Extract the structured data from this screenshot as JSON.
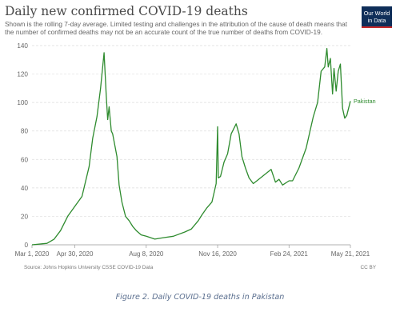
{
  "chart_data": {
    "type": "line",
    "title": "Daily new confirmed COVID-19 deaths",
    "subtitle": "Shown is the rolling 7-day average. Limited testing and challenges in the attribution of the cause of death means that the number of confirmed deaths may not be an accurate count of the true number of deaths from COVID-19.",
    "logo_text": "Our World in Data",
    "source": "Source: Johns Hopkins University CSSE COVID-19 Data",
    "license": "CC BY",
    "x_tick_labels": [
      "Mar 1, 2020",
      "Apr 30, 2020",
      "Aug 8, 2020",
      "Nov 16, 2020",
      "Feb 24, 2021",
      "May 21, 2021"
    ],
    "y_ticks": [
      0,
      20,
      40,
      60,
      80,
      100,
      120,
      140
    ],
    "ylim": [
      0,
      140
    ],
    "xlim": [
      "2020-03-01",
      "2021-05-21"
    ],
    "grid": true,
    "line_color": "#2e8b2e",
    "series": [
      {
        "name": "Pakistan",
        "x": [
          "2020-03-01",
          "2020-03-22",
          "2020-04-01",
          "2020-04-10",
          "2020-04-20",
          "2020-04-30",
          "2020-05-10",
          "2020-05-20",
          "2020-05-25",
          "2020-05-31",
          "2020-06-05",
          "2020-06-10",
          "2020-06-13",
          "2020-06-15",
          "2020-06-17",
          "2020-06-20",
          "2020-06-22",
          "2020-06-25",
          "2020-06-28",
          "2020-07-01",
          "2020-07-05",
          "2020-07-10",
          "2020-07-15",
          "2020-07-20",
          "2020-07-25",
          "2020-08-01",
          "2020-08-08",
          "2020-08-20",
          "2020-09-01",
          "2020-09-15",
          "2020-10-01",
          "2020-10-10",
          "2020-10-20",
          "2020-10-25",
          "2020-11-01",
          "2020-11-08",
          "2020-11-14",
          "2020-11-16",
          "2020-11-17",
          "2020-11-20",
          "2020-11-25",
          "2020-11-30",
          "2020-12-05",
          "2020-12-12",
          "2020-12-16",
          "2020-12-20",
          "2020-12-25",
          "2020-12-30",
          "2021-01-05",
          "2021-01-10",
          "2021-01-20",
          "2021-01-30",
          "2021-02-05",
          "2021-02-10",
          "2021-02-15",
          "2021-02-24",
          "2021-03-01",
          "2021-03-10",
          "2021-03-20",
          "2021-03-30",
          "2021-04-05",
          "2021-04-10",
          "2021-04-15",
          "2021-04-18",
          "2021-04-20",
          "2021-04-23",
          "2021-04-26",
          "2021-04-28",
          "2021-05-01",
          "2021-05-04",
          "2021-05-07",
          "2021-05-10",
          "2021-05-13",
          "2021-05-16",
          "2021-05-21"
        ],
        "y": [
          0,
          1,
          4,
          10,
          20,
          27,
          34,
          55,
          75,
          90,
          110,
          135,
          105,
          88,
          97,
          80,
          78,
          70,
          62,
          42,
          30,
          20,
          17,
          13,
          10,
          7,
          6,
          4,
          5,
          6,
          9,
          11,
          17,
          21,
          26,
          30,
          43,
          83,
          47,
          48,
          58,
          64,
          78,
          85,
          78,
          62,
          54,
          47,
          43,
          45,
          49,
          53,
          44,
          46,
          42,
          45,
          45,
          54,
          68,
          90,
          100,
          122,
          125,
          138,
          125,
          131,
          106,
          124,
          108,
          122,
          127,
          96,
          89,
          91,
          101
        ]
      }
    ]
  }
}
